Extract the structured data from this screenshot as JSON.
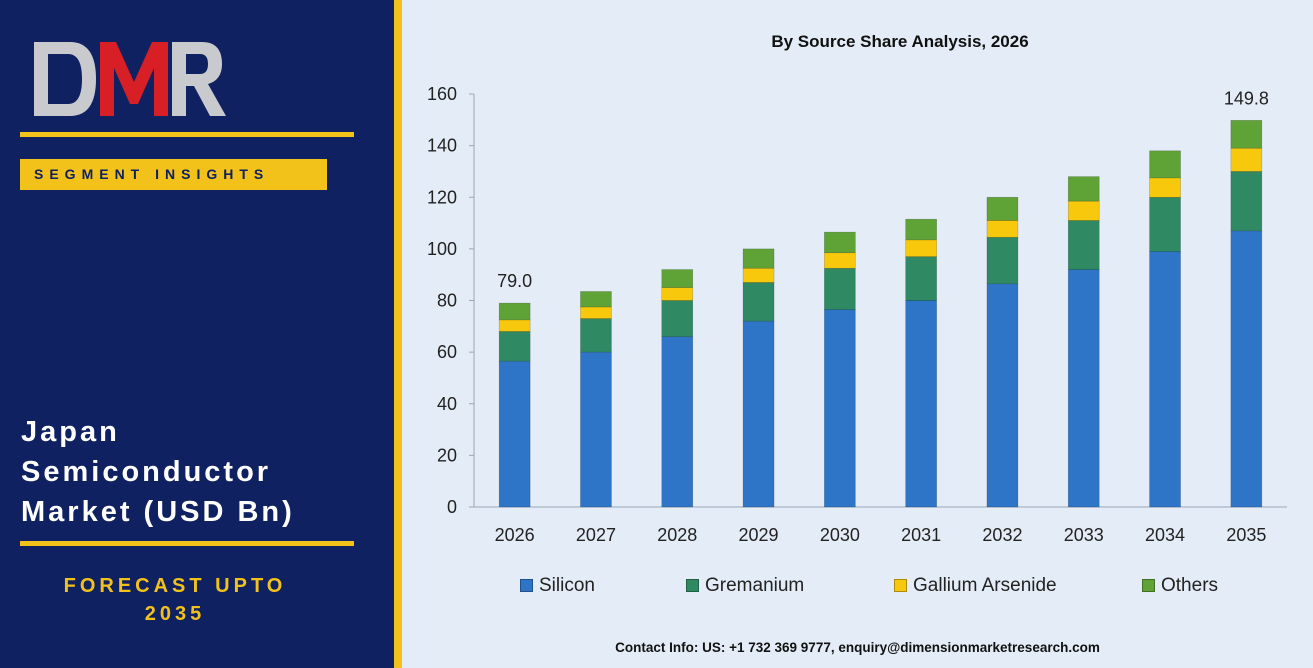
{
  "brand": {
    "logo_text": "DMR",
    "colors": {
      "navy": "#0f2160",
      "gold": "#f2c21b",
      "logo_grey": "#c9cacd",
      "logo_red": "#d81f25"
    }
  },
  "sidebar": {
    "badge": "SEGMENT INSIGHTS",
    "title_lines": [
      "Japan",
      "Semiconductor",
      "Market (USD Bn)"
    ],
    "forecast_lines": [
      "FORECAST UPTO",
      "2035"
    ]
  },
  "footer": {
    "contact": "Contact Info: US: +1 732 369 9777, enquiry@dimensionmarketresearch.com"
  },
  "chart_data": {
    "type": "bar",
    "stacked": true,
    "title": "By Source Share Analysis, 2026",
    "xlabel": "",
    "ylabel": "",
    "ylim": [
      0,
      160
    ],
    "yticks": [
      0,
      20,
      40,
      60,
      80,
      100,
      120,
      140,
      160
    ],
    "categories": [
      "2026",
      "2027",
      "2028",
      "2029",
      "2030",
      "2031",
      "2032",
      "2033",
      "2034",
      "2035"
    ],
    "series": [
      {
        "name": "Silicon",
        "color": "#2e75c7",
        "values": [
          56.5,
          60,
          66,
          72,
          76.5,
          80,
          86.5,
          92,
          99,
          107
        ]
      },
      {
        "name": "Gremanium",
        "color": "#2f8a64",
        "values": [
          11.5,
          13,
          14,
          15,
          16,
          17,
          18,
          19,
          21,
          23
        ]
      },
      {
        "name": "Gallium Arsenide",
        "color": "#f7c80b",
        "values": [
          4.5,
          4.5,
          5,
          5.5,
          6,
          6.5,
          6.5,
          7.5,
          7.5,
          9
        ]
      },
      {
        "name": "Others",
        "color": "#5fa236",
        "values": [
          6.5,
          6,
          7,
          7.5,
          8,
          8,
          9,
          9.5,
          10.5,
          10.8
        ]
      }
    ],
    "data_labels": [
      {
        "category": "2026",
        "text": "79.0"
      },
      {
        "category": "2035",
        "text": "149.8"
      }
    ],
    "legend_position": "bottom",
    "grid": false
  }
}
